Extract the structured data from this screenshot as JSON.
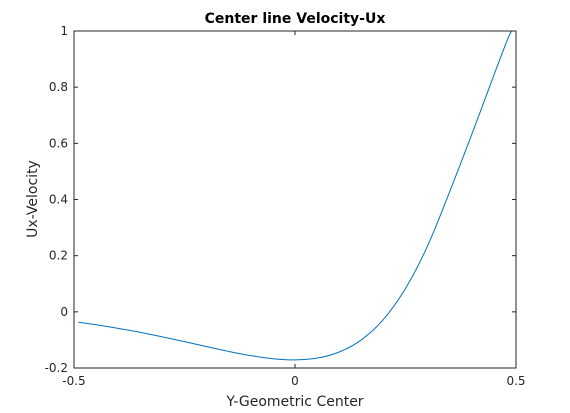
{
  "chart_data": {
    "type": "line",
    "title": "Center line Velocity-Ux",
    "xlabel": "Y-Geometric Center",
    "ylabel": "Ux-Velocity",
    "xlim": [
      -0.5,
      0.5
    ],
    "ylim": [
      -0.2,
      1
    ],
    "xticks": [
      -0.5,
      0,
      0.5
    ],
    "xtick_labels": [
      "-0.5",
      "0",
      "0.5"
    ],
    "yticks": [
      -0.2,
      0,
      0.2,
      0.4,
      0.6,
      0.8,
      1
    ],
    "ytick_labels": [
      "-0.2",
      "0",
      "0.2",
      "0.4",
      "0.6",
      "0.8",
      "1"
    ],
    "grid": false,
    "series": [
      {
        "color": "#0072bd",
        "x": [
          -0.49,
          -0.45,
          -0.4,
          -0.35,
          -0.3,
          -0.25,
          -0.2,
          -0.15,
          -0.1,
          -0.05,
          0.0,
          0.05,
          0.1,
          0.15,
          0.2,
          0.25,
          0.3,
          0.35,
          0.4,
          0.45,
          0.48,
          0.49
        ],
        "y": [
          -0.037,
          -0.046,
          -0.059,
          -0.073,
          -0.089,
          -0.106,
          -0.124,
          -0.141,
          -0.156,
          -0.167,
          -0.171,
          -0.165,
          -0.143,
          -0.1,
          -0.027,
          0.083,
          0.235,
          0.428,
          0.632,
          0.843,
          0.967,
          1.0
        ]
      }
    ]
  }
}
